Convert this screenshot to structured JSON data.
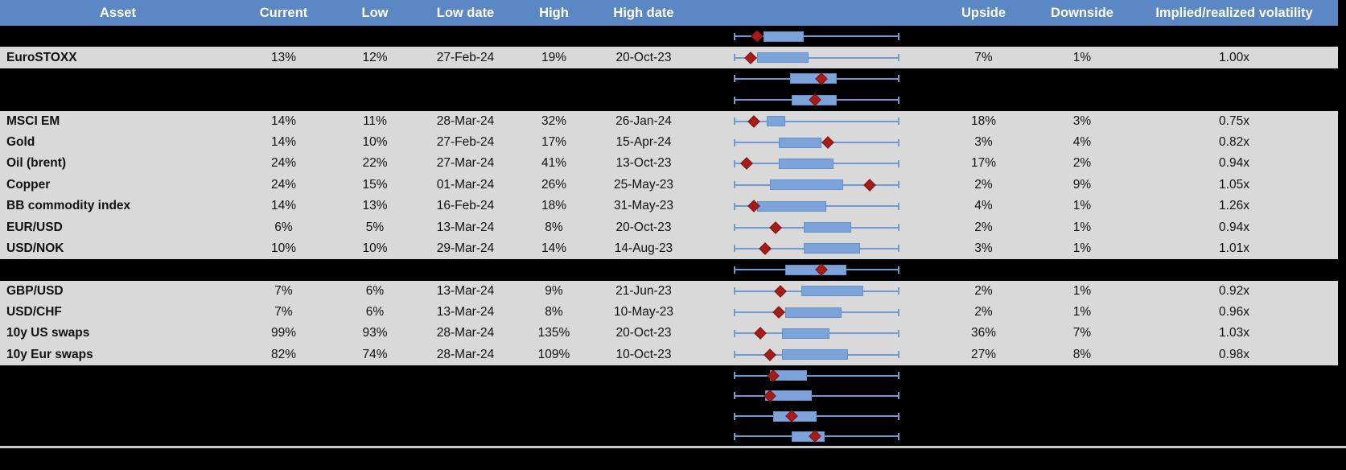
{
  "table": {
    "headers": {
      "asset": "Asset",
      "current": "Current",
      "low": "Low",
      "low_date": "Low date",
      "high": "High",
      "high_date": "High date",
      "upside": "Upside",
      "downside": "Downside",
      "implied_realized": "Implied/realized volatility"
    },
    "rows": [
      {
        "range_chart": {
          "box_lo": 0.18,
          "box_hi": 0.42,
          "marker": 0.14
        }
      },
      {
        "asset": "EuroSTOXX",
        "current": "13%",
        "low": "12%",
        "low_date": "27-Feb-24",
        "high": "19%",
        "high_date": "20-Oct-23",
        "upside": "7%",
        "downside": "1%",
        "implied_realized": "1.00x",
        "range_chart": {
          "box_lo": 0.14,
          "box_hi": 0.45,
          "marker": 0.1
        }
      },
      {
        "range_chart": {
          "box_lo": 0.34,
          "box_hi": 0.62,
          "marker": 0.53
        }
      },
      {
        "range_chart": {
          "box_lo": 0.35,
          "box_hi": 0.62,
          "marker": 0.49
        }
      },
      {
        "asset": "MSCI EM",
        "current": "14%",
        "low": "11%",
        "low_date": "28-Mar-24",
        "high": "32%",
        "high_date": "26-Jan-24",
        "upside": "18%",
        "downside": "3%",
        "implied_realized": "0.75x",
        "range_chart": {
          "box_lo": 0.2,
          "box_hi": 0.31,
          "marker": 0.12
        }
      },
      {
        "asset": "Gold",
        "current": "14%",
        "low": "10%",
        "low_date": "27-Feb-24",
        "high": "17%",
        "high_date": "15-Apr-24",
        "upside": "3%",
        "downside": "4%",
        "implied_realized": "0.82x",
        "range_chart": {
          "box_lo": 0.27,
          "box_hi": 0.53,
          "marker": 0.57
        }
      },
      {
        "asset": "Oil (brent)",
        "current": "24%",
        "low": "22%",
        "low_date": "27-Mar-24",
        "high": "41%",
        "high_date": "13-Oct-23",
        "upside": "17%",
        "downside": "2%",
        "implied_realized": "0.94x",
        "range_chart": {
          "box_lo": 0.27,
          "box_hi": 0.6,
          "marker": 0.08
        }
      },
      {
        "asset": "Copper",
        "current": "24%",
        "low": "15%",
        "low_date": "01-Mar-24",
        "high": "26%",
        "high_date": "25-May-23",
        "upside": "2%",
        "downside": "9%",
        "implied_realized": "1.05x",
        "range_chart": {
          "box_lo": 0.22,
          "box_hi": 0.66,
          "marker": 0.82
        }
      },
      {
        "asset": "BB commodity index",
        "current": "14%",
        "low": "13%",
        "low_date": "16-Feb-24",
        "high": "18%",
        "high_date": "31-May-23",
        "upside": "4%",
        "downside": "1%",
        "implied_realized": "1.26x",
        "range_chart": {
          "box_lo": 0.14,
          "box_hi": 0.56,
          "marker": 0.12
        }
      },
      {
        "asset": "EUR/USD",
        "current": "6%",
        "low": "5%",
        "low_date": "13-Mar-24",
        "high": "8%",
        "high_date": "20-Oct-23",
        "upside": "2%",
        "downside": "1%",
        "implied_realized": "0.94x",
        "range_chart": {
          "box_lo": 0.42,
          "box_hi": 0.71,
          "marker": 0.25
        }
      },
      {
        "asset": "USD/NOK",
        "current": "10%",
        "low": "10%",
        "low_date": "29-Mar-24",
        "high": "14%",
        "high_date": "14-Aug-23",
        "upside": "3%",
        "downside": "1%",
        "implied_realized": "1.01x",
        "range_chart": {
          "box_lo": 0.42,
          "box_hi": 0.76,
          "marker": 0.19
        }
      },
      {
        "range_chart": {
          "box_lo": 0.31,
          "box_hi": 0.68,
          "marker": 0.53
        }
      },
      {
        "asset": "GBP/USD",
        "current": "7%",
        "low": "6%",
        "low_date": "13-Mar-24",
        "high": "9%",
        "high_date": "21-Jun-23",
        "upside": "2%",
        "downside": "1%",
        "implied_realized": "0.92x",
        "range_chart": {
          "box_lo": 0.41,
          "box_hi": 0.78,
          "marker": 0.28
        }
      },
      {
        "asset": "USD/CHF",
        "current": "7%",
        "low": "6%",
        "low_date": "13-Mar-24",
        "high": "8%",
        "high_date": "10-May-23",
        "upside": "2%",
        "downside": "1%",
        "implied_realized": "0.96x",
        "range_chart": {
          "box_lo": 0.31,
          "box_hi": 0.65,
          "marker": 0.27
        }
      },
      {
        "asset": "10y US swaps",
        "current": "99%",
        "low": "93%",
        "low_date": "28-Mar-24",
        "high": "135%",
        "high_date": "20-Oct-23",
        "upside": "36%",
        "downside": "7%",
        "implied_realized": "1.03x",
        "range_chart": {
          "box_lo": 0.29,
          "box_hi": 0.58,
          "marker": 0.16
        }
      },
      {
        "asset": "10y Eur swaps",
        "current": "82%",
        "low": "74%",
        "low_date": "28-Mar-24",
        "high": "109%",
        "high_date": "10-Oct-23",
        "upside": "27%",
        "downside": "8%",
        "implied_realized": "0.98x",
        "range_chart": {
          "box_lo": 0.29,
          "box_hi": 0.69,
          "marker": 0.22
        }
      },
      {
        "range_chart": {
          "box_lo": 0.22,
          "box_hi": 0.44,
          "marker": 0.24
        }
      },
      {
        "range_chart": {
          "box_lo": 0.19,
          "box_hi": 0.47,
          "marker": 0.22
        }
      },
      {
        "range_chart": {
          "box_lo": 0.24,
          "box_hi": 0.5,
          "marker": 0.35
        }
      },
      {
        "range_chart": {
          "box_lo": 0.35,
          "box_hi": 0.55,
          "marker": 0.49
        }
      }
    ]
  },
  "colors": {
    "header_bg": "#5b87c4",
    "header_text": "#ffffff",
    "data_row_bg": "#d9d9d9",
    "background": "#000000",
    "whisker": "#6f9bd5",
    "box_fill": "#7ca4da",
    "box_border": "#6390c9",
    "marker": "#a51c18",
    "separator": "#c9c9c9"
  }
}
